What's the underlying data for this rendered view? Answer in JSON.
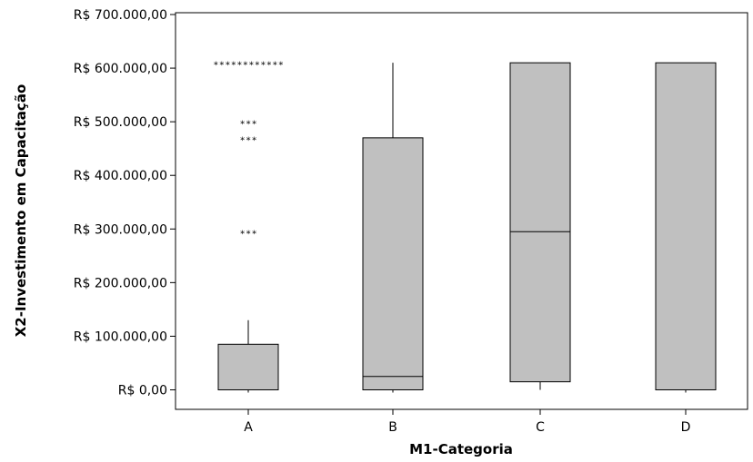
{
  "chart_data": {
    "type": "boxplot",
    "xlabel": "M1-Categoria",
    "ylabel": "X2-Investimento em Capacitação",
    "categories": [
      "A",
      "B",
      "C",
      "D"
    ],
    "ylim": [
      -30000,
      710000
    ],
    "yticks": [
      0,
      100000,
      200000,
      300000,
      400000,
      500000,
      600000,
      700000
    ],
    "ytick_labels": [
      "R$ 0,00",
      "R$ 100.000,00",
      "R$ 200.000,00",
      "R$ 300.000,00",
      "R$ 400.000,00",
      "R$ 500.000,00",
      "R$ 600.000,00",
      "R$ 700.000,00"
    ],
    "grid": false,
    "box_color": "#c0c0c0",
    "line_color": "#000000",
    "boxes": [
      {
        "category": "A",
        "whisker_low": 0,
        "q1": 0,
        "median": 0,
        "q3": 85000,
        "whisker_high": 130000,
        "outliers": [
          {
            "value": 610000,
            "count": 12
          },
          {
            "value": 500000,
            "count": 3
          },
          {
            "value": 470000,
            "count": 3
          },
          {
            "value": 295000,
            "count": 3
          }
        ]
      },
      {
        "category": "B",
        "whisker_low": 0,
        "q1": 0,
        "median": 25000,
        "q3": 470000,
        "whisker_high": 610000,
        "outliers": []
      },
      {
        "category": "C",
        "whisker_low": 0,
        "q1": 15000,
        "median": 295000,
        "q3": 610000,
        "whisker_high": 610000,
        "outliers": []
      },
      {
        "category": "D",
        "whisker_low": 0,
        "q1": 0,
        "median": 0,
        "q3": 610000,
        "whisker_high": 610000,
        "outliers": []
      }
    ]
  }
}
